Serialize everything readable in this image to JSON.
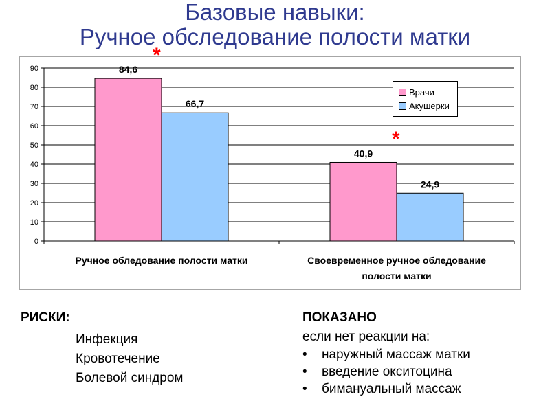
{
  "slide": {
    "title_line1": "Базовые навыки:",
    "title_line2": "Ручное обследование полости матки",
    "significance_mark": "*"
  },
  "chart_data": {
    "type": "bar",
    "title": "",
    "categories": [
      "Ручное обледование полости матки",
      "Своевременное ручное обледование полости матки"
    ],
    "category_lines": [
      [
        "Ручное обледование полости матки"
      ],
      [
        "Своевременное ручное обледование",
        "полости матки"
      ]
    ],
    "series": [
      {
        "name": "Врачи",
        "values": [
          84.6,
          40.9
        ],
        "labels": [
          "84,6",
          "40,9"
        ],
        "color": "#ff99cc"
      },
      {
        "name": "Акушерки",
        "values": [
          66.7,
          24.9
        ],
        "labels": [
          "66,7",
          "24,9"
        ],
        "color": "#99ccff"
      }
    ],
    "ylim": [
      0,
      90
    ],
    "yticks": [
      0,
      10,
      20,
      30,
      40,
      50,
      60,
      70,
      80,
      90
    ],
    "grid": true,
    "legend": "right"
  },
  "risks": {
    "heading": "РИСКИ:",
    "items": [
      "Инфекция",
      "Кровотечение",
      "Болевой синдром"
    ]
  },
  "indicated": {
    "heading": "ПОКАЗАНО",
    "subheading": "если нет реакции на:",
    "bullet": "•",
    "items": [
      "наружный массаж матки",
      "введение окситоцина",
      "бимануальный массаж"
    ]
  }
}
